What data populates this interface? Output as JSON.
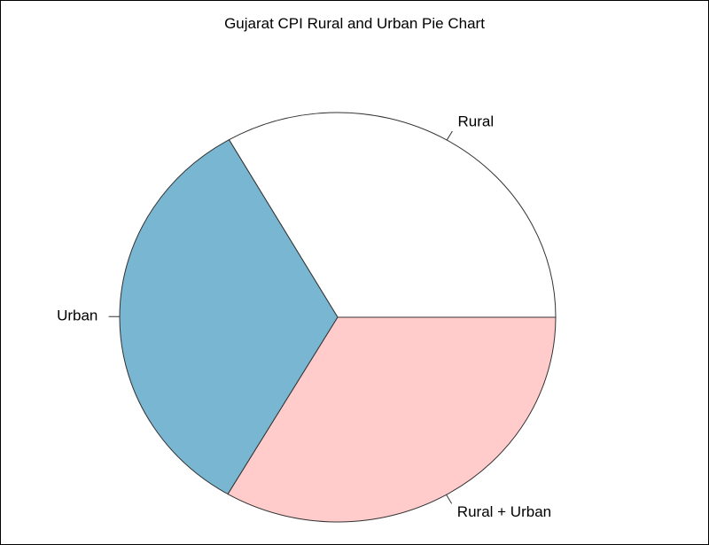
{
  "chart_data": {
    "type": "pie",
    "title": "Gujarat CPI Rural and Urban Pie Chart",
    "categories": [
      "Rural",
      "Urban",
      "Rural + Urban"
    ],
    "values": [
      33.3,
      33.3,
      33.4
    ],
    "colors": [
      "#ffffff",
      "#78b6d1",
      "#ffcccb"
    ],
    "start_angle_deg": 0,
    "direction": "counterclockwise",
    "legend": "none"
  }
}
